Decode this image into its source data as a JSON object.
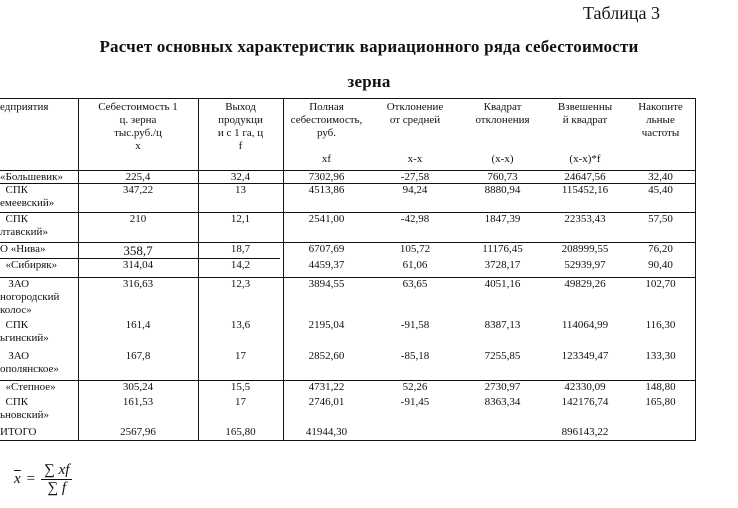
{
  "table_label": "Таблица 3",
  "heading_line1": "Расчет основных характеристик вариационного ряда себестоимости",
  "heading_line2": "зерна",
  "table": {
    "headers": [
      "едприятия",
      "Себестоимость 1\nц. зерна\nтыс.руб./ц\nx",
      "Выход\nпродукци\nи с 1 га, ц\nf",
      "Полная\nсебестоимость,\nруб.\n\nxf",
      "Отклонение\nот средней\n\n\nx-x",
      "Квадрат\nотклонения\n\n\n(x-x)",
      "Взвешенны\nй квадрат\n\n\n(x-x)*f",
      "Накопите\nльные\nчастоты"
    ],
    "rows": [
      [
        "«Большевик»",
        "225,4",
        "32,4",
        "7302,96",
        "-27,58",
        "760,73",
        "24647,56",
        "32,40"
      ],
      [
        "  СПК\nемеевский»",
        "347,22",
        "13",
        "4513,86",
        "94,24",
        "8880,94",
        "115452,16",
        "45,40"
      ],
      [
        "  СПК\nлтавский»",
        "210",
        "12,1",
        "2541,00",
        "-42,98",
        "1847,39",
        "22353,43",
        "57,50"
      ],
      [
        "О «Нива»",
        "358,7",
        "18,7",
        "6707,69",
        "105,72",
        "11176,45",
        "208999,55",
        "76,20"
      ],
      [
        "  «Сибиряк»",
        "314,04",
        "14,2",
        "4459,37",
        "61,06",
        "3728,17",
        "52939,97",
        "90,40"
      ],
      [
        "   ЗАО\nногородский\nколос»",
        "316,63",
        "12,3",
        "3894,55",
        "63,65",
        "4051,16",
        "49829,26",
        "102,70"
      ],
      [
        "  СПК\nьгинский»",
        "161,4",
        "13,6",
        "2195,04",
        "-91,58",
        "8387,13",
        "114064,99",
        "116,30"
      ],
      [
        "   ЗАО\nополянское»",
        "167,8",
        "17",
        "2852,60",
        "-85,18",
        "7255,85",
        "123349,47",
        "133,30"
      ],
      [
        "  «Степное»",
        "305,24",
        "15,5",
        "4731,22",
        "52,26",
        "2730,97",
        "42330,09",
        "148,80"
      ],
      [
        "  СПК\nьновский»",
        "161,53",
        "17",
        "2746,01",
        "-91,45",
        "8363,34",
        "142176,74",
        "165,80"
      ],
      [
        "ИТОГО",
        "2567,96",
        "165,80",
        "41944,30",
        "",
        "",
        "896143,22",
        ""
      ]
    ]
  },
  "formula": {
    "lhs": "x",
    "eq": "=",
    "numerator": "∑ xf",
    "denominator": "∑ f"
  }
}
